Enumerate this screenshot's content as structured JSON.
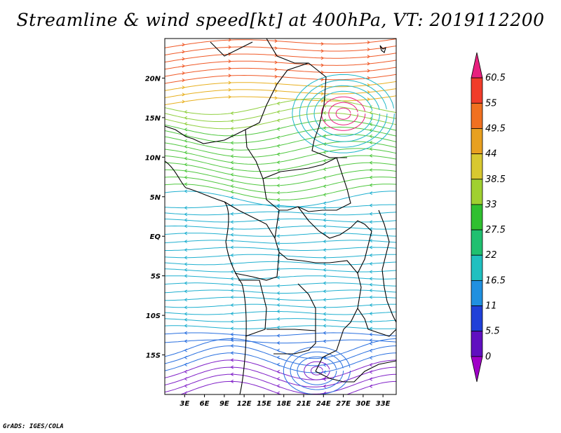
{
  "title": "Streamline & wind speed[kt] at 400hPa, VT: 2019112200",
  "footer": "GrADS: IGES/COLA",
  "map": {
    "region": "Central Africa",
    "lon_range": [
      0,
      35
    ],
    "lat_range": [
      -20,
      25
    ],
    "lat_ticks": [
      "20N",
      "15N",
      "10N",
      "5N",
      "EQ",
      "5S",
      "10S",
      "15S"
    ],
    "lat_tick_values": [
      20,
      15,
      10,
      5,
      0,
      -5,
      -10,
      -15
    ],
    "lon_ticks": [
      "3E",
      "6E",
      "9E",
      "12E",
      "15E",
      "18E",
      "21E",
      "24E",
      "27E",
      "30E",
      "33E"
    ],
    "lon_tick_values": [
      3,
      6,
      9,
      12,
      15,
      18,
      21,
      24,
      27,
      30,
      33
    ]
  },
  "colorbar": {
    "labels": [
      "60.5",
      "55",
      "49.5",
      "44",
      "38.5",
      "33",
      "27.5",
      "22",
      "16.5",
      "11",
      "5.5",
      "0"
    ],
    "colors": [
      "#e8207e",
      "#f03c2a",
      "#f07020",
      "#e8a020",
      "#d8c830",
      "#a0d030",
      "#30c030",
      "#20c070",
      "#20c0c0",
      "#2090e0",
      "#2040d8",
      "#6010c0",
      "#a000c8"
    ]
  }
}
